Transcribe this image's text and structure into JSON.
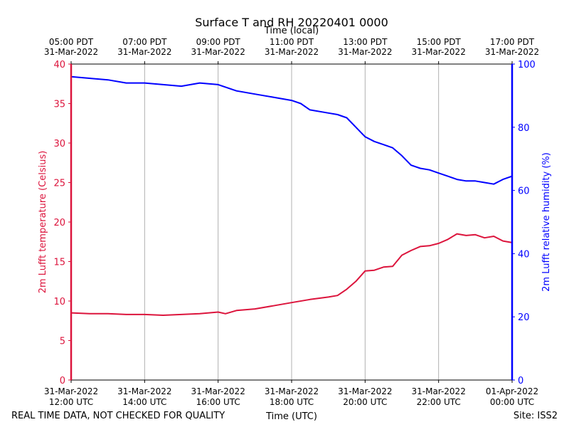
{
  "chart_data": {
    "type": "line",
    "title": "Surface T and RH 20220401 0000",
    "top_axis_label": "Time (local)",
    "xlabel": "Time (UTC)",
    "ylabel_left": "2m Lufft temperature (Celsius)",
    "ylabel_right": "2m Lufft relative humidity (%)",
    "footer_left": "REAL TIME DATA, NOT CHECKED FOR QUALITY",
    "footer_right": "Site: ISS2",
    "xlim_hours_utc": [
      12,
      24
    ],
    "ylim_left": [
      0,
      40
    ],
    "ylim_right": [
      0,
      100
    ],
    "grid": "vertical",
    "colors": {
      "temperature": "#dc143c",
      "humidity": "#0000ff",
      "grid": "#b0b0b0",
      "axis": "#000000"
    },
    "x_ticks_bottom": [
      {
        "hour": 12,
        "date": "31-Mar-2022",
        "time": "12:00 UTC"
      },
      {
        "hour": 14,
        "date": "31-Mar-2022",
        "time": "14:00 UTC"
      },
      {
        "hour": 16,
        "date": "31-Mar-2022",
        "time": "16:00 UTC"
      },
      {
        "hour": 18,
        "date": "31-Mar-2022",
        "time": "18:00 UTC"
      },
      {
        "hour": 20,
        "date": "31-Mar-2022",
        "time": "20:00 UTC"
      },
      {
        "hour": 22,
        "date": "31-Mar-2022",
        "time": "22:00 UTC"
      },
      {
        "hour": 24,
        "date": "01-Apr-2022",
        "time": "00:00 UTC"
      }
    ],
    "x_ticks_top": [
      {
        "hour": 12,
        "time": "05:00 PDT",
        "date": "31-Mar-2022"
      },
      {
        "hour": 14,
        "time": "07:00 PDT",
        "date": "31-Mar-2022"
      },
      {
        "hour": 16,
        "time": "09:00 PDT",
        "date": "31-Mar-2022"
      },
      {
        "hour": 18,
        "time": "11:00 PDT",
        "date": "31-Mar-2022"
      },
      {
        "hour": 20,
        "time": "13:00 PDT",
        "date": "31-Mar-2022"
      },
      {
        "hour": 22,
        "time": "15:00 PDT",
        "date": "31-Mar-2022"
      },
      {
        "hour": 24,
        "time": "17:00 PDT",
        "date": "31-Mar-2022"
      }
    ],
    "y_ticks_left": [
      0,
      5,
      10,
      15,
      20,
      25,
      30,
      35,
      40
    ],
    "y_ticks_right": [
      0,
      20,
      40,
      60,
      80,
      100
    ],
    "series": [
      {
        "name": "2m Lufft temperature",
        "axis": "left",
        "x": [
          12.0,
          12.5,
          13.0,
          13.5,
          14.0,
          14.5,
          15.0,
          15.5,
          16.0,
          16.2,
          16.5,
          17.0,
          17.5,
          18.0,
          18.5,
          19.0,
          19.25,
          19.5,
          19.75,
          20.0,
          20.25,
          20.5,
          20.75,
          21.0,
          21.25,
          21.5,
          21.75,
          22.0,
          22.25,
          22.5,
          22.75,
          23.0,
          23.25,
          23.5,
          23.75,
          24.0
        ],
        "values": [
          8.5,
          8.4,
          8.4,
          8.3,
          8.3,
          8.2,
          8.3,
          8.4,
          8.6,
          8.4,
          8.8,
          9.0,
          9.4,
          9.8,
          10.2,
          10.5,
          10.7,
          11.5,
          12.5,
          13.8,
          13.9,
          14.3,
          14.4,
          15.8,
          16.4,
          16.9,
          17.0,
          17.3,
          17.8,
          18.5,
          18.3,
          18.4,
          18.0,
          18.2,
          17.6,
          17.4
        ]
      },
      {
        "name": "2m Lufft relative humidity",
        "axis": "right",
        "x": [
          12.0,
          12.5,
          13.0,
          13.5,
          14.0,
          14.5,
          15.0,
          15.5,
          16.0,
          16.5,
          17.0,
          17.5,
          18.0,
          18.25,
          18.5,
          19.0,
          19.25,
          19.5,
          19.75,
          20.0,
          20.25,
          20.5,
          20.75,
          21.0,
          21.25,
          21.5,
          21.75,
          22.0,
          22.25,
          22.5,
          22.75,
          23.0,
          23.25,
          23.5,
          23.75,
          24.0
        ],
        "values": [
          96,
          95.5,
          95,
          94,
          94,
          93.5,
          93,
          94,
          93.5,
          91.5,
          90.5,
          89.5,
          88.5,
          87.5,
          85.5,
          84.5,
          84.0,
          83.0,
          80.0,
          77.0,
          75.5,
          74.5,
          73.5,
          71.0,
          68.0,
          67.0,
          66.5,
          65.5,
          64.5,
          63.5,
          63.0,
          63.0,
          62.5,
          62.0,
          63.5,
          64.5
        ]
      }
    ]
  }
}
